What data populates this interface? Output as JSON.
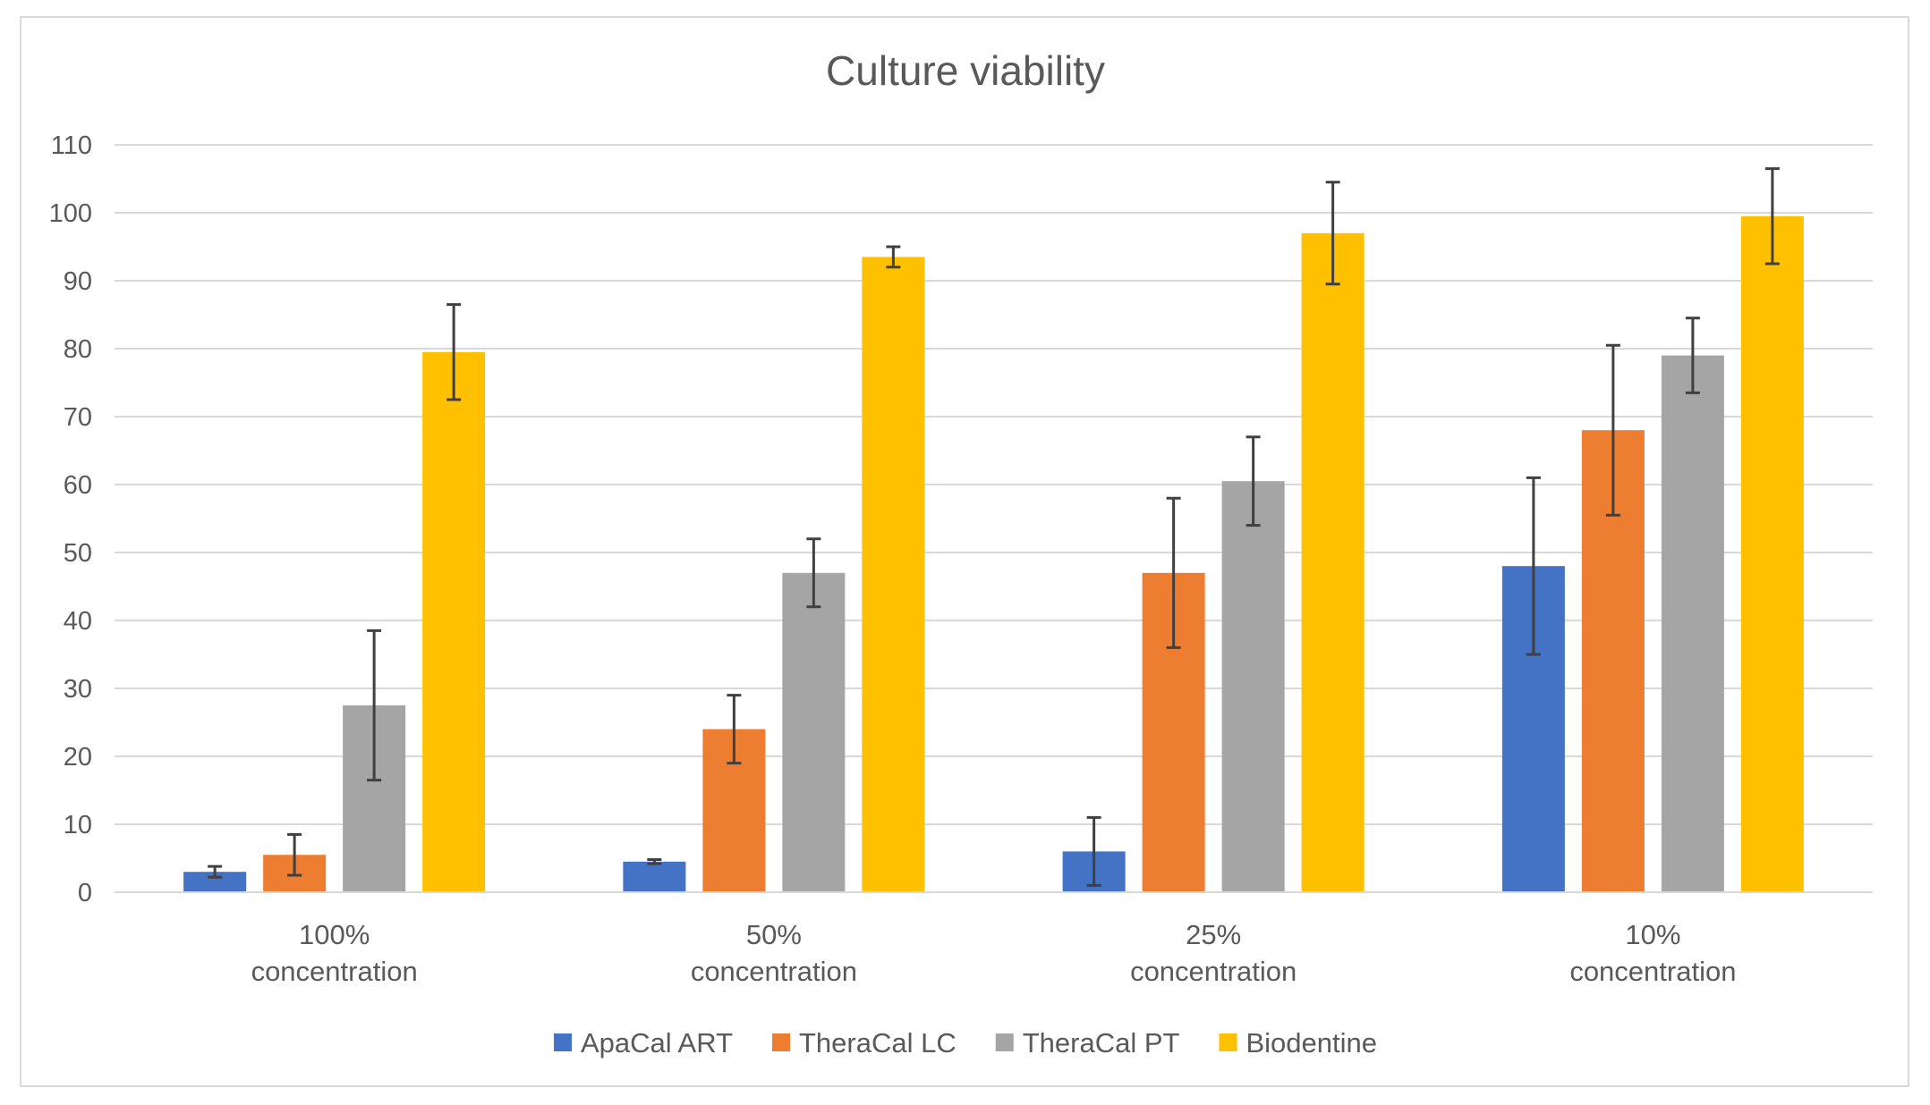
{
  "chart_data": {
    "type": "bar",
    "title": "Culture viability",
    "xlabel": "",
    "ylabel": "",
    "ylim": [
      0,
      110
    ],
    "ytick_step": 10,
    "grid": true,
    "legend_position": "bottom",
    "categories": [
      [
        "100%",
        "concentration"
      ],
      [
        "50%",
        "concentration"
      ],
      [
        "25%",
        "concentration"
      ],
      [
        "10%",
        "concentration"
      ]
    ],
    "series": [
      {
        "name": "ApaCal ART",
        "color": "#4472C4",
        "values": [
          3,
          4.5,
          6,
          48
        ],
        "errors": [
          0.8,
          0.3,
          5,
          13
        ]
      },
      {
        "name": "TheraCal LC",
        "color": "#ED7D31",
        "values": [
          5.5,
          24,
          47,
          68
        ],
        "errors": [
          3,
          5,
          11,
          12.5
        ]
      },
      {
        "name": "TheraCal PT",
        "color": "#A5A5A5",
        "values": [
          27.5,
          47,
          60.5,
          79
        ],
        "errors": [
          11,
          5,
          6.5,
          5.5
        ]
      },
      {
        "name": "Biodentine",
        "color": "#FFC000",
        "values": [
          79.5,
          93.5,
          97,
          99.5
        ],
        "errors": [
          7,
          1.5,
          7.5,
          7
        ]
      }
    ]
  }
}
